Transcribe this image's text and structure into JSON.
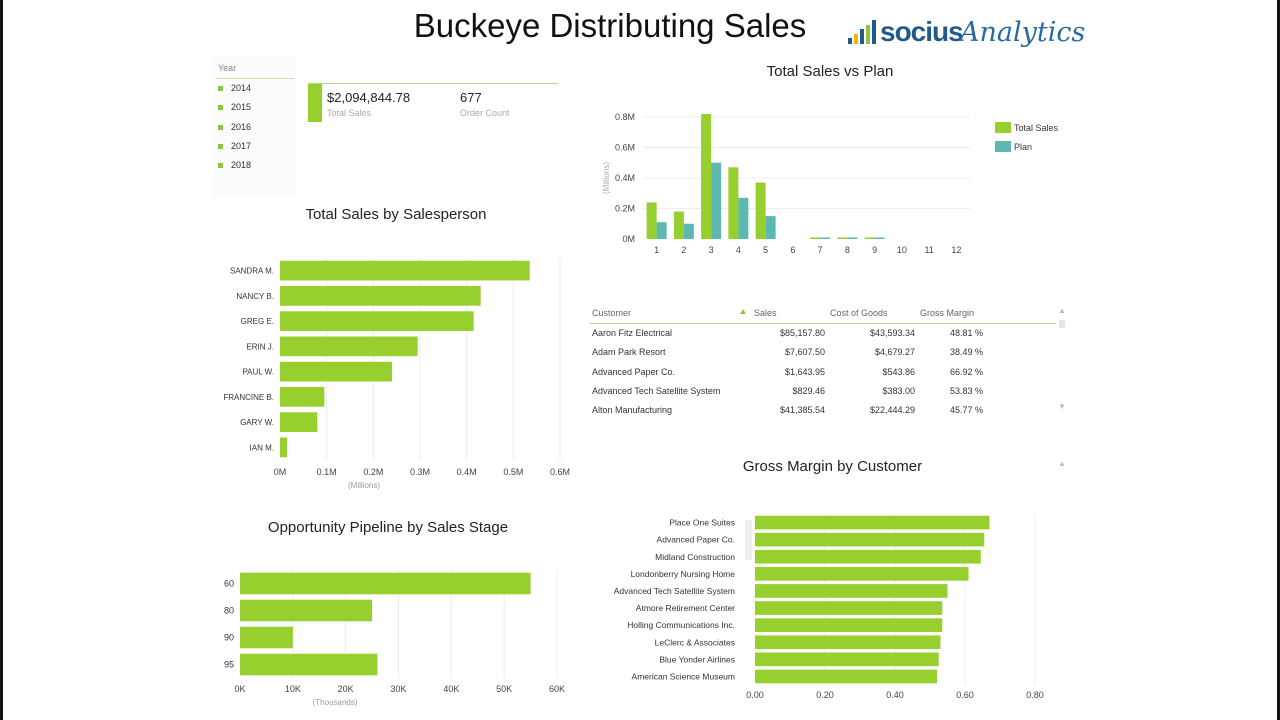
{
  "title": "Buckeye Distributing Sales",
  "logo": {
    "socius": "socius",
    "analytics": "Analytics"
  },
  "colors": {
    "primary": "#97cf2f",
    "secondary": "#5cb8b0",
    "gridline": "#ececec"
  },
  "slicer": {
    "label": "Year",
    "items": [
      "2014",
      "2015",
      "2016",
      "2017",
      "2018"
    ]
  },
  "kpis": {
    "total_sales": "$2,094,844.78",
    "total_sales_label": "Total Sales",
    "order_count": "677",
    "order_count_label": "Order Count"
  },
  "table": {
    "columns": [
      "Customer",
      "Sales",
      "Cost of Goods",
      "Gross Margin"
    ],
    "sort_icon": "sort-ascending-icon",
    "rows": [
      [
        "Aaron Fitz Electrical",
        "$85,157.80",
        "$43,593.34",
        "48.81 %"
      ],
      [
        "Adam Park Resort",
        "$7,607.50",
        "$4,679.27",
        "38.49 %"
      ],
      [
        "Advanced Paper Co.",
        "$1,643.95",
        "$543.86",
        "66.92 %"
      ],
      [
        "Advanced Tech Satellite System",
        "$829.46",
        "$383.00",
        "53.83 %"
      ],
      [
        "Alton Manufacturing",
        "$41,385.54",
        "$22,444.29",
        "45.77 %"
      ]
    ]
  },
  "chart_data": [
    {
      "id": "sales_vs_plan",
      "type": "bar",
      "title": "Total Sales vs Plan",
      "ylabel": "(Millions)",
      "categories": [
        "1",
        "2",
        "3",
        "4",
        "5",
        "6",
        "7",
        "8",
        "9",
        "10",
        "11",
        "12"
      ],
      "series": [
        {
          "name": "Total Sales",
          "values": [
            0.24,
            0.18,
            0.82,
            0.47,
            0.37,
            0,
            0.01,
            0.01,
            0.01,
            0,
            0,
            0
          ]
        },
        {
          "name": "Plan",
          "values": [
            0.11,
            0.1,
            0.5,
            0.27,
            0.15,
            0,
            0.01,
            0.01,
            0.01,
            0,
            0,
            0
          ]
        }
      ],
      "ylim": [
        0,
        0.8
      ],
      "yticks": [
        "0M",
        "0.2M",
        "0.4M",
        "0.6M",
        "0.8M"
      ],
      "legend": "right"
    },
    {
      "id": "sales_by_salesperson",
      "type": "bar",
      "orientation": "horizontal",
      "title": "Total Sales by Salesperson",
      "xlabel": "(Millions)",
      "categories": [
        "SANDRA M.",
        "NANCY B.",
        "GREG E.",
        "ERIN J.",
        "PAUL W.",
        "FRANCINE B.",
        "GARY W.",
        "IAN M."
      ],
      "values": [
        0.535,
        0.43,
        0.415,
        0.295,
        0.24,
        0.095,
        0.08,
        0.015
      ],
      "xlim": [
        0,
        0.6
      ],
      "xticks": [
        "0M",
        "0.1M",
        "0.2M",
        "0.3M",
        "0.4M",
        "0.5M",
        "0.6M"
      ]
    },
    {
      "id": "pipeline_by_stage",
      "type": "bar",
      "orientation": "horizontal",
      "title": "Opportunity Pipeline by Sales Stage",
      "xlabel": "(Thousands)",
      "categories": [
        "60",
        "80",
        "90",
        "95"
      ],
      "values": [
        55,
        25,
        10,
        26
      ],
      "xlim": [
        0,
        60
      ],
      "xticks": [
        "0K",
        "10K",
        "20K",
        "30K",
        "40K",
        "50K",
        "60K"
      ]
    },
    {
      "id": "gross_margin_by_customer",
      "type": "bar",
      "orientation": "horizontal",
      "title": "Gross Margin by Customer",
      "categories": [
        "Place One Suites",
        "Advanced Paper Co.",
        "Midland Construction",
        "Londonberry Nursing Home",
        "Advanced Tech Satellite System",
        "Atmore Retirement Center",
        "Holling Communications Inc.",
        "LeClerc & Associates",
        "Blue Yonder Airlines",
        "American Science Museum"
      ],
      "values": [
        0.67,
        0.655,
        0.645,
        0.61,
        0.55,
        0.535,
        0.535,
        0.53,
        0.525,
        0.52
      ],
      "xlim": [
        0,
        0.8
      ],
      "xticks": [
        "0.00",
        "0.20",
        "0.40",
        "0.60",
        "0.80"
      ]
    }
  ]
}
